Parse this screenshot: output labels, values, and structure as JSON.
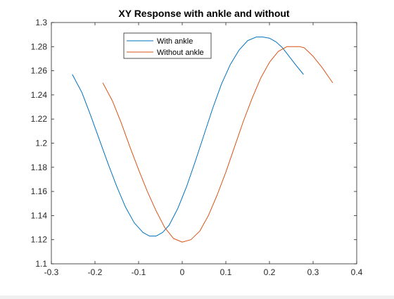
{
  "chart_data": {
    "type": "line",
    "title": "XY Response with ankle and without",
    "xlabel": "",
    "ylabel": "",
    "xlim": [
      -0.3,
      0.4
    ],
    "ylim": [
      1.1,
      1.3
    ],
    "xticks": [
      -0.3,
      -0.2,
      -0.1,
      0,
      0.1,
      0.2,
      0.3,
      0.4
    ],
    "yticks": [
      1.1,
      1.12,
      1.14,
      1.16,
      1.18,
      1.2,
      1.22,
      1.24,
      1.26,
      1.28,
      1.3
    ],
    "xtick_labels": [
      "-0.3",
      "-0.2",
      "-0.1",
      "0",
      "0.1",
      "0.2",
      "0.3",
      "0.4"
    ],
    "ytick_labels": [
      "1.1",
      "1.12",
      "1.14",
      "1.16",
      "1.18",
      "1.2",
      "1.22",
      "1.24",
      "1.26",
      "1.28",
      "1.3"
    ],
    "grid": false,
    "legend_position": "top-center",
    "series": [
      {
        "name": "With ankle",
        "color": "#0072bd",
        "x": [
          -0.252,
          -0.23,
          -0.21,
          -0.19,
          -0.17,
          -0.15,
          -0.13,
          -0.11,
          -0.09,
          -0.075,
          -0.06,
          -0.045,
          -0.03,
          -0.01,
          0.01,
          0.03,
          0.05,
          0.07,
          0.09,
          0.11,
          0.13,
          0.15,
          0.17,
          0.185,
          0.2,
          0.215,
          0.23,
          0.245,
          0.26,
          0.278
        ],
        "y": [
          1.257,
          1.242,
          1.223,
          1.203,
          1.183,
          1.164,
          1.147,
          1.134,
          1.126,
          1.123,
          1.123,
          1.126,
          1.132,
          1.146,
          1.164,
          1.185,
          1.207,
          1.229,
          1.249,
          1.265,
          1.277,
          1.285,
          1.288,
          1.288,
          1.287,
          1.284,
          1.279,
          1.272,
          1.265,
          1.257
        ]
      },
      {
        "name": "Without ankle",
        "color": "#d95319",
        "x": [
          -0.182,
          -0.16,
          -0.14,
          -0.12,
          -0.1,
          -0.08,
          -0.06,
          -0.04,
          -0.02,
          0,
          0.02,
          0.04,
          0.06,
          0.08,
          0.1,
          0.12,
          0.14,
          0.16,
          0.18,
          0.2,
          0.22,
          0.24,
          0.26,
          0.27,
          0.28,
          0.3,
          0.32,
          0.345
        ],
        "y": [
          1.25,
          1.235,
          1.217,
          1.197,
          1.178,
          1.16,
          1.144,
          1.13,
          1.121,
          1.118,
          1.12,
          1.127,
          1.14,
          1.157,
          1.176,
          1.197,
          1.218,
          1.237,
          1.254,
          1.267,
          1.276,
          1.28,
          1.28,
          1.28,
          1.279,
          1.272,
          1.263,
          1.25
        ]
      }
    ]
  }
}
